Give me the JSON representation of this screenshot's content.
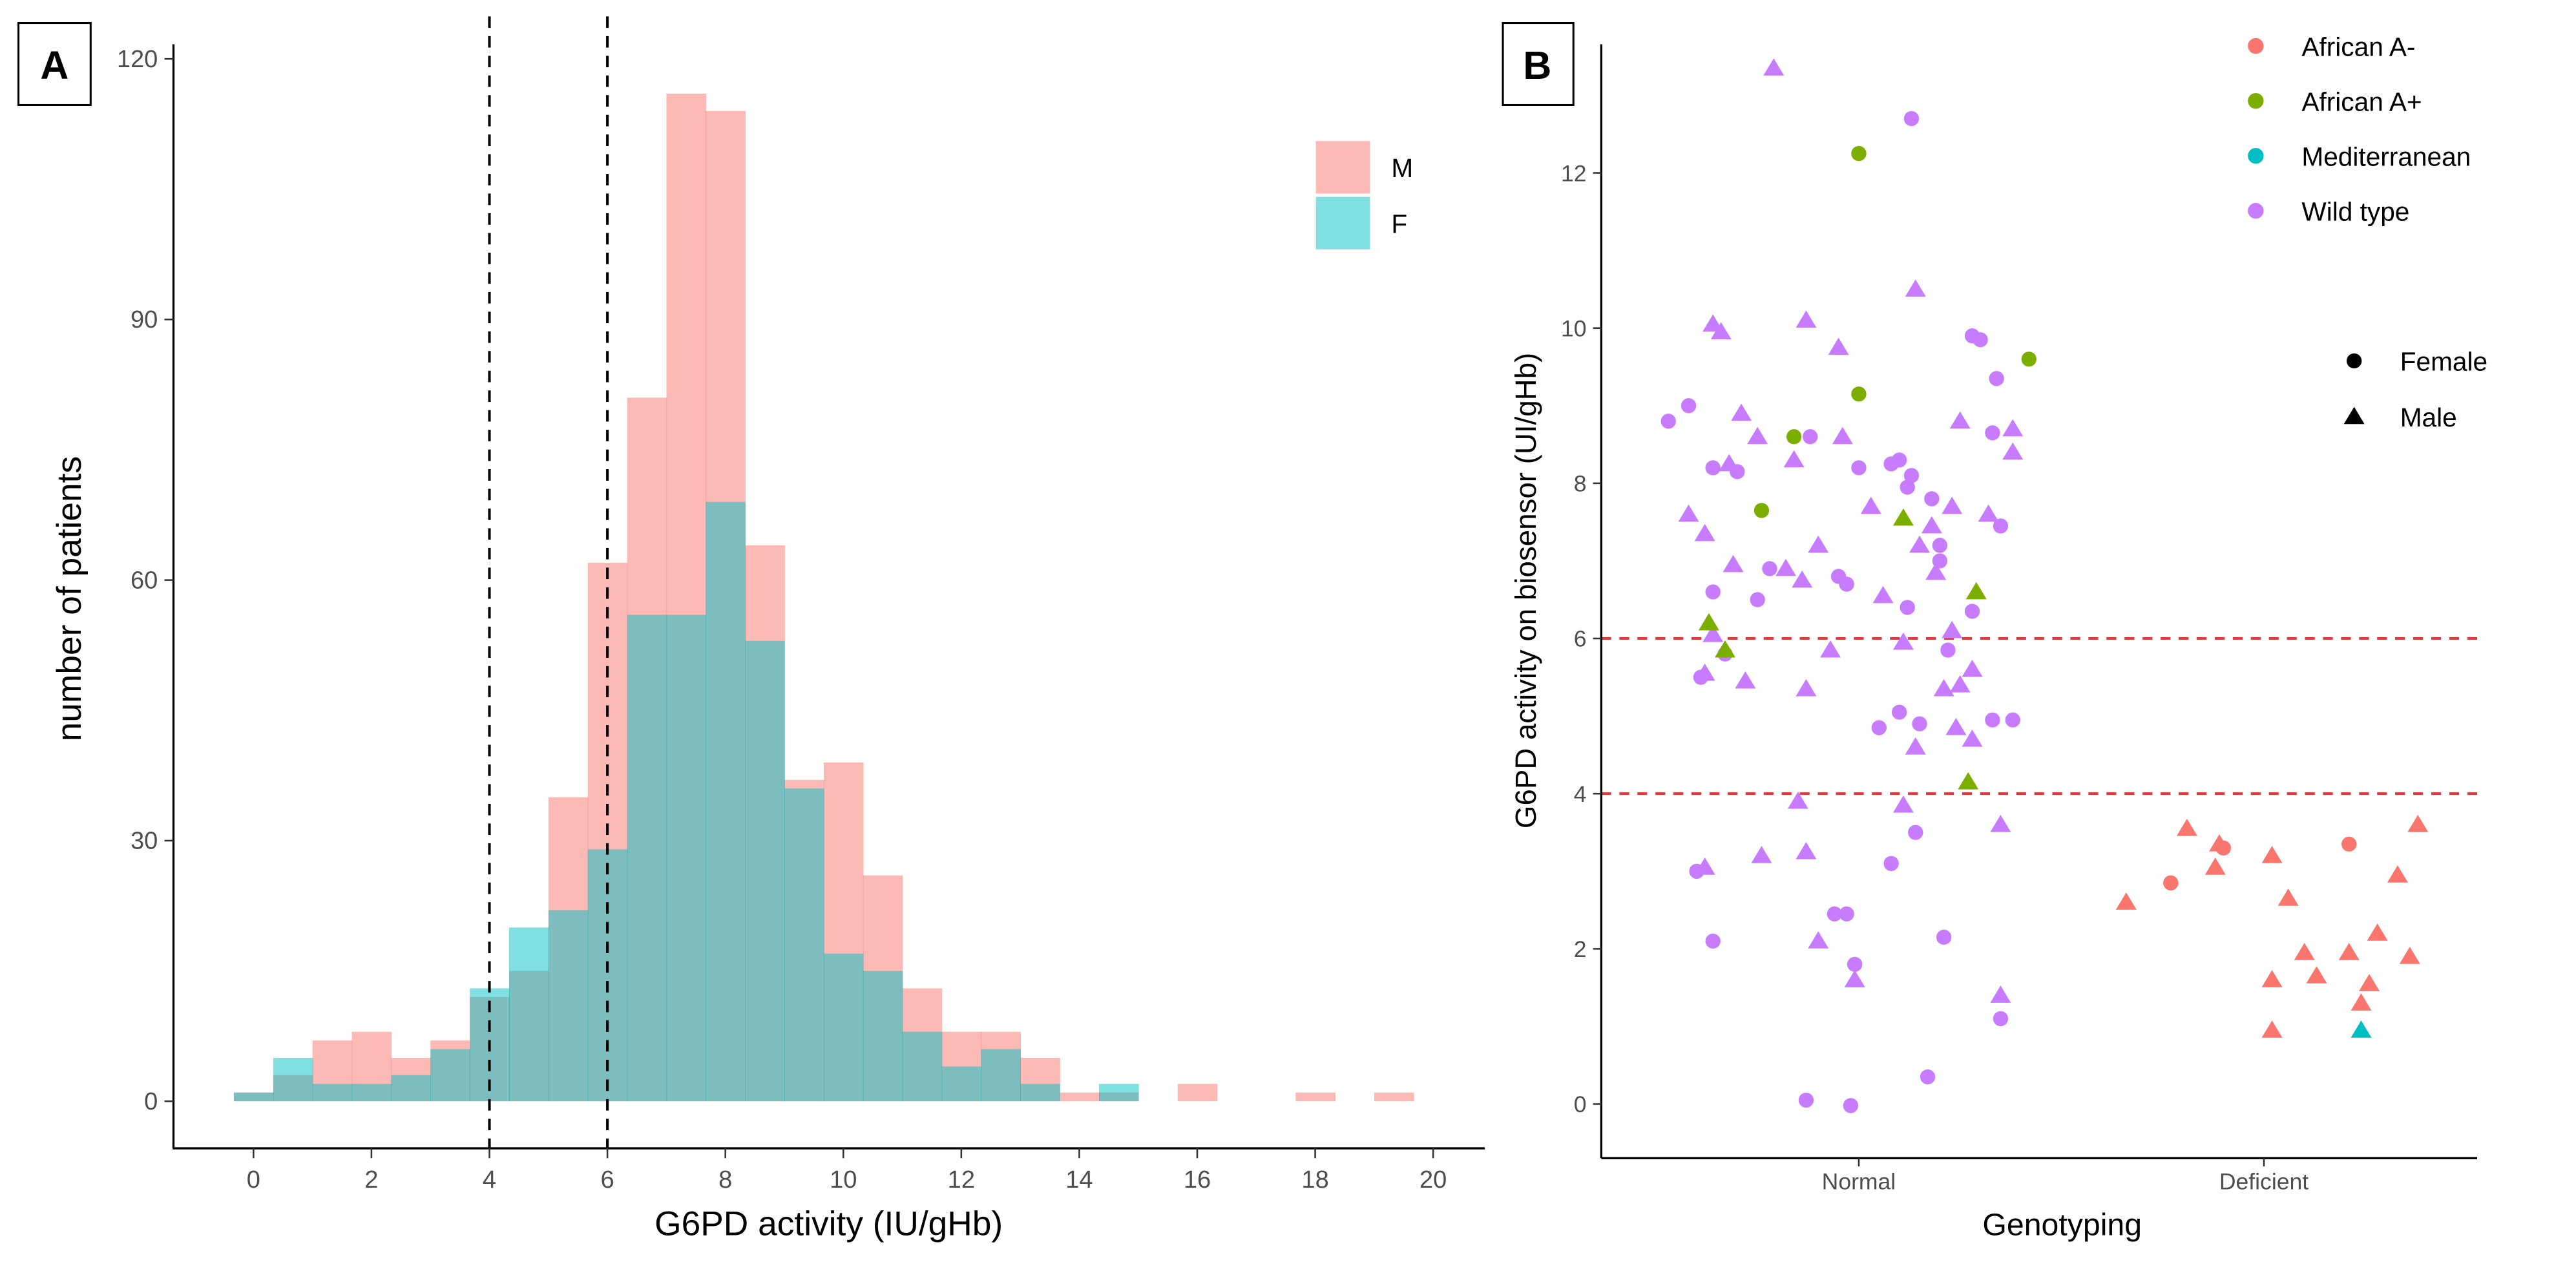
{
  "colors": {
    "M": "#F8766D",
    "F": "#00BFC4",
    "African A-": "#F8766D",
    "African A+": "#7CAE00",
    "Mediterranean": "#00BFC4",
    "Wild type": "#C77CFF",
    "threshold_A": "#000000",
    "threshold_B": "#E0383B"
  },
  "chart_data": [
    {
      "panel": "A",
      "type": "bar",
      "subtype": "overlaid histogram",
      "xlabel": "G6PD activity (IU/gHb)",
      "ylabel": "number of patients",
      "xlim": [
        -1,
        21
      ],
      "ylim": [
        0,
        120
      ],
      "xticks": [
        "0",
        "2",
        "4",
        "6",
        "8",
        "10",
        "12",
        "14",
        "16",
        "18",
        "20"
      ],
      "yticks": [
        "0",
        "30",
        "60",
        "90",
        "120"
      ],
      "bin_start": -0.333,
      "bin_width": 0.6667,
      "series": [
        {
          "name": "M",
          "values": [
            1,
            3,
            7,
            8,
            5,
            7,
            12,
            15,
            35,
            62,
            81,
            116,
            114,
            64,
            37,
            39,
            26,
            13,
            8,
            8,
            5,
            1,
            1,
            0,
            2,
            0,
            0,
            1,
            0,
            1
          ]
        },
        {
          "name": "F",
          "values": [
            1,
            5,
            2,
            2,
            3,
            6,
            13,
            20,
            22,
            29,
            56,
            56,
            69,
            53,
            36,
            17,
            15,
            8,
            4,
            6,
            2,
            0,
            2,
            0,
            0,
            0,
            0,
            0,
            0,
            0
          ]
        }
      ],
      "vlines": [
        4,
        6
      ],
      "legend": {
        "items": [
          "M",
          "F"
        ],
        "position": "top-right"
      }
    },
    {
      "panel": "B",
      "type": "scatter",
      "xlabel": "Genotyping",
      "ylabel": "G6PD activity on biosensor (UI/gHb)",
      "categories": [
        "Normal",
        "Deficient"
      ],
      "ylim": [
        -0.5,
        13.6
      ],
      "yticks": [
        "0",
        "2",
        "4",
        "6",
        "8",
        "10",
        "12"
      ],
      "hlines": [
        6,
        4
      ],
      "legend_color": {
        "items": [
          "African A-",
          "African A+",
          "Mediterranean",
          "Wild type"
        ],
        "position": "top-right"
      },
      "legend_shape": {
        "items": [
          "Female",
          "Male"
        ],
        "position": "right"
      },
      "series": [
        {
          "variant": "Wild type",
          "sex": "Male",
          "category": "Normal",
          "points": [
            [
              -0.21,
              13.35
            ],
            [
              -0.36,
              10.05
            ],
            [
              -0.34,
              9.95
            ],
            [
              -0.13,
              10.1
            ],
            [
              -0.05,
              9.75
            ],
            [
              0.14,
              10.5
            ],
            [
              -0.42,
              7.6
            ],
            [
              -0.38,
              7.35
            ],
            [
              -0.32,
              8.25
            ],
            [
              -0.29,
              8.9
            ],
            [
              -0.25,
              8.6
            ],
            [
              -0.16,
              8.3
            ],
            [
              -0.04,
              8.6
            ],
            [
              0.03,
              7.7
            ],
            [
              -0.1,
              7.2
            ],
            [
              0.06,
              6.55
            ],
            [
              -0.31,
              6.95
            ],
            [
              -0.18,
              6.9
            ],
            [
              -0.14,
              6.75
            ],
            [
              -0.36,
              6.05
            ],
            [
              -0.38,
              5.55
            ],
            [
              -0.28,
              5.45
            ],
            [
              -0.13,
              5.35
            ],
            [
              -0.07,
              5.85
            ],
            [
              0.11,
              5.95
            ],
            [
              0.15,
              7.2
            ],
            [
              0.18,
              7.45
            ],
            [
              0.19,
              6.85
            ],
            [
              0.23,
              6.1
            ],
            [
              0.25,
              5.4
            ],
            [
              0.28,
              4.7
            ],
            [
              0.24,
              4.85
            ],
            [
              0.14,
              4.6
            ],
            [
              0.11,
              3.85
            ],
            [
              -0.15,
              3.9
            ],
            [
              -0.38,
              3.05
            ],
            [
              -0.24,
              3.2
            ],
            [
              -0.13,
              3.25
            ],
            [
              -0.1,
              2.1
            ],
            [
              -0.01,
              1.6
            ],
            [
              0.35,
              1.4
            ],
            [
              0.35,
              3.6
            ],
            [
              0.23,
              7.7
            ],
            [
              0.25,
              8.8
            ],
            [
              0.38,
              8.4
            ],
            [
              0.38,
              8.7
            ],
            [
              0.32,
              7.6
            ],
            [
              0.28,
              5.6
            ],
            [
              0.21,
              5.35
            ]
          ]
        },
        {
          "variant": "Wild type",
          "sex": "Female",
          "category": "Normal",
          "points": [
            [
              0.13,
              12.7
            ],
            [
              0.28,
              9.9
            ],
            [
              0.3,
              9.85
            ],
            [
              0.34,
              9.35
            ],
            [
              -0.47,
              8.8
            ],
            [
              -0.42,
              9.0
            ],
            [
              -0.36,
              8.2
            ],
            [
              -0.3,
              8.15
            ],
            [
              -0.12,
              8.6
            ],
            [
              0.0,
              8.2
            ],
            [
              0.08,
              8.25
            ],
            [
              0.1,
              8.3
            ],
            [
              0.13,
              8.1
            ],
            [
              0.2,
              7.2
            ],
            [
              0.2,
              7.0
            ],
            [
              -0.22,
              6.9
            ],
            [
              -0.25,
              6.5
            ],
            [
              -0.36,
              6.6
            ],
            [
              -0.05,
              6.8
            ],
            [
              -0.03,
              6.7
            ],
            [
              0.12,
              6.4
            ],
            [
              0.28,
              6.35
            ],
            [
              0.22,
              5.85
            ],
            [
              -0.33,
              5.8
            ],
            [
              -0.39,
              5.5
            ],
            [
              0.33,
              4.95
            ],
            [
              0.38,
              4.95
            ],
            [
              0.1,
              5.05
            ],
            [
              0.15,
              4.9
            ],
            [
              0.05,
              4.85
            ],
            [
              -0.4,
              3.0
            ],
            [
              0.08,
              3.1
            ],
            [
              0.14,
              3.5
            ],
            [
              -0.36,
              2.1
            ],
            [
              -0.03,
              2.45
            ],
            [
              -0.06,
              2.45
            ],
            [
              -0.01,
              1.8
            ],
            [
              0.21,
              2.15
            ],
            [
              0.35,
              1.1
            ],
            [
              -0.13,
              0.05
            ],
            [
              -0.02,
              -0.02
            ],
            [
              0.17,
              0.35
            ],
            [
              0.18,
              7.8
            ],
            [
              0.12,
              7.95
            ],
            [
              0.35,
              7.45
            ],
            [
              0.33,
              8.65
            ]
          ]
        },
        {
          "variant": "African A+",
          "sex": "Female",
          "category": "Normal",
          "points": [
            [
              0.0,
              12.25
            ],
            [
              0.0,
              9.15
            ],
            [
              -0.16,
              8.6
            ],
            [
              -0.24,
              7.65
            ],
            [
              0.42,
              9.6
            ]
          ]
        },
        {
          "variant": "African A+",
          "sex": "Male",
          "category": "Normal",
          "points": [
            [
              0.11,
              7.55
            ],
            [
              0.29,
              6.6
            ],
            [
              -0.37,
              6.2
            ],
            [
              -0.33,
              5.85
            ],
            [
              0.27,
              4.15
            ]
          ]
        },
        {
          "variant": "African A-",
          "sex": "Female",
          "category": "Deficient",
          "points": [
            [
              -0.23,
              2.85
            ],
            [
              -0.1,
              3.3
            ],
            [
              0.21,
              3.35
            ]
          ]
        },
        {
          "variant": "African A-",
          "sex": "Male",
          "category": "Deficient",
          "points": [
            [
              -0.34,
              2.6
            ],
            [
              -0.19,
              3.55
            ],
            [
              -0.11,
              3.35
            ],
            [
              -0.12,
              3.05
            ],
            [
              0.02,
              3.2
            ],
            [
              0.06,
              2.65
            ],
            [
              0.38,
              3.6
            ],
            [
              0.33,
              2.95
            ],
            [
              0.02,
              1.6
            ],
            [
              0.1,
              1.95
            ],
            [
              0.13,
              1.65
            ],
            [
              0.21,
              1.95
            ],
            [
              0.28,
              2.2
            ],
            [
              0.36,
              1.9
            ],
            [
              0.26,
              1.55
            ],
            [
              0.24,
              1.3
            ],
            [
              0.02,
              0.95
            ]
          ]
        },
        {
          "variant": "Mediterranean",
          "sex": "Male",
          "category": "Deficient",
          "points": [
            [
              0.24,
              0.95
            ]
          ]
        }
      ]
    }
  ],
  "panels": {
    "a_label": "A",
    "b_label": "B"
  }
}
